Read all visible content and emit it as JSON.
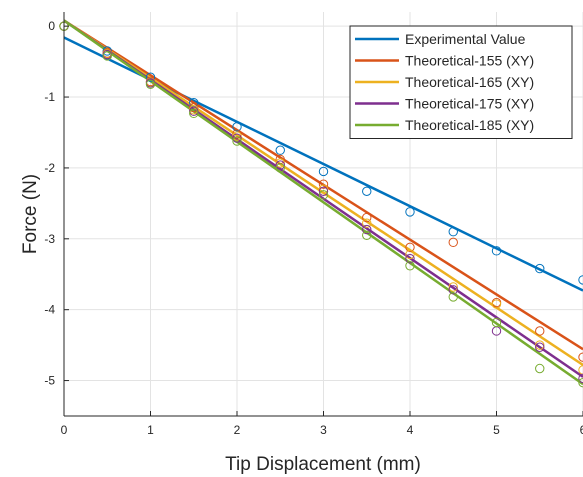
{
  "chart_data": {
    "type": "scatter",
    "xlabel": "Tip Displacement (mm)",
    "ylabel": "Force (N)",
    "xlim": [
      0,
      6
    ],
    "ylim": [
      -5.5,
      0.2
    ],
    "xticks": [
      0,
      1,
      2,
      3,
      4,
      5,
      6
    ],
    "xtick_labels": [
      "0",
      "1",
      "2",
      "3",
      "4",
      "5",
      "6"
    ],
    "yticks": [
      0,
      -1,
      -2,
      -3,
      -4,
      -5
    ],
    "ytick_labels": [
      "0",
      "-1",
      "-2",
      "-3",
      "-4",
      "-5"
    ],
    "grid": true,
    "legend_position": "top-right",
    "series": [
      {
        "name": "Experimental Value",
        "color": "#0072BD",
        "fit": {
          "slope": -0.595,
          "intercept": -0.16
        },
        "points": {
          "x": [
            0,
            0.5,
            1,
            1.5,
            2,
            2.5,
            3,
            3.5,
            4,
            4.5,
            5,
            5.5,
            6
          ],
          "y": [
            0,
            -0.35,
            -0.72,
            -1.08,
            -1.42,
            -1.75,
            -2.05,
            -2.33,
            -2.62,
            -2.9,
            -3.17,
            -3.42,
            -3.58
          ]
        }
      },
      {
        "name": "Theoretical-155 (XY)",
        "color": "#D95319",
        "fit": {
          "slope": -0.773,
          "intercept": 0.08
        },
        "points": {
          "x": [
            0,
            0.5,
            1,
            1.5,
            2,
            2.5,
            3,
            3.5,
            4,
            4.5,
            5,
            5.5,
            6
          ],
          "y": [
            0,
            -0.38,
            -0.78,
            -1.15,
            -1.52,
            -1.88,
            -2.23,
            -2.7,
            -3.12,
            -3.05,
            -3.9,
            -4.3,
            -4.67
          ]
        }
      },
      {
        "name": "Theoretical-165 (XY)",
        "color": "#EDB120",
        "fit": {
          "slope": -0.81,
          "intercept": 0.08
        },
        "points": {
          "x": [
            0,
            0.5,
            1,
            1.5,
            2,
            2.5,
            3,
            3.5,
            4,
            4.5,
            5,
            5.5,
            6
          ],
          "y": [
            0,
            -0.39,
            -0.79,
            -1.18,
            -1.55,
            -1.93,
            -2.3,
            -2.78,
            -3.22,
            -3.68,
            -3.92,
            -4.5,
            -4.85
          ]
        }
      },
      {
        "name": "Theoretical-175 (XY)",
        "color": "#7E2F8E",
        "fit": {
          "slope": -0.838,
          "intercept": 0.08
        },
        "points": {
          "x": [
            0,
            0.5,
            1,
            1.5,
            2,
            2.5,
            3,
            3.5,
            4,
            4.5,
            5,
            5.5,
            6
          ],
          "y": [
            0,
            -0.4,
            -0.8,
            -1.2,
            -1.58,
            -1.96,
            -2.33,
            -2.87,
            -3.28,
            -3.72,
            -4.3,
            -4.53,
            -4.97
          ]
        }
      },
      {
        "name": "Theoretical-185 (XY)",
        "color": "#77AC30",
        "fit": {
          "slope": -0.855,
          "intercept": 0.08
        },
        "points": {
          "x": [
            0,
            0.5,
            1,
            1.5,
            2,
            2.5,
            3,
            3.5,
            4,
            4.5,
            5,
            5.5,
            6
          ],
          "y": [
            0,
            -0.42,
            -0.82,
            -1.23,
            -1.62,
            -2.0,
            -2.38,
            -2.95,
            -3.38,
            -3.82,
            -4.18,
            -4.83,
            -5.03
          ]
        }
      }
    ]
  }
}
